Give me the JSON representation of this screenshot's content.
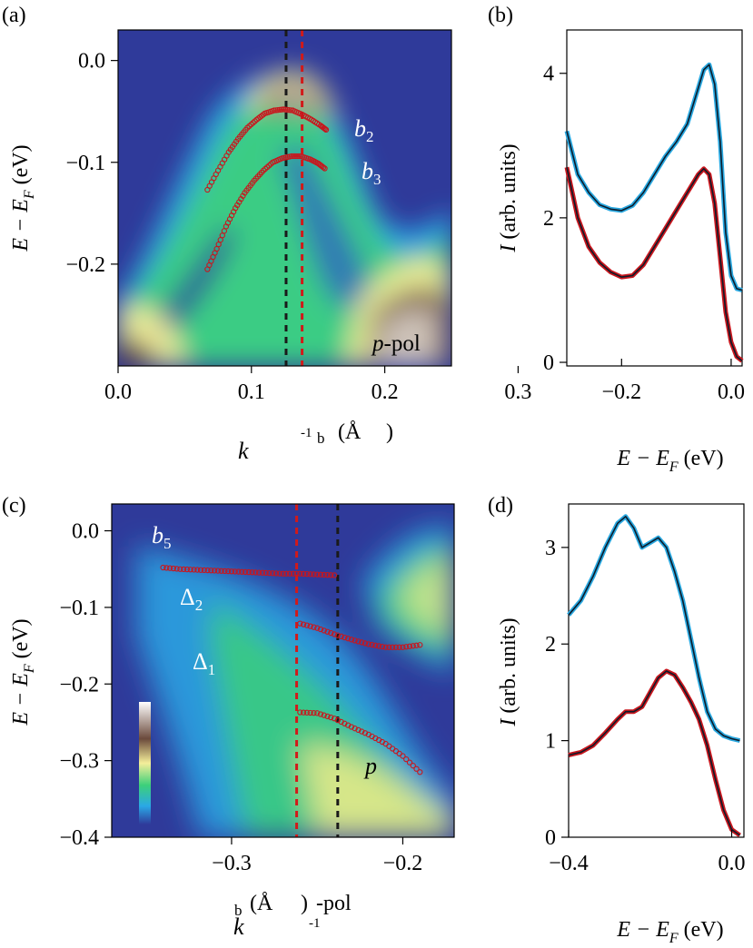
{
  "colors": {
    "blue_trace": "#29a8e0",
    "red_trace": "#c8161d",
    "fit_line": "#0d1b2a",
    "red_marker": "#c8161d",
    "red_dash": "#d11a1a",
    "black_dash": "#1a1a1a",
    "map_background": "#2f3a9a"
  },
  "panels": {
    "a": {
      "label": "(a)",
      "ylabel_main": "E − E",
      "ylabel_sub": "F",
      "ylabel_unit": " (eV)",
      "xlabel_k": "k",
      "xlabel_sub": "b",
      "xlabel_unit": "(Å",
      "xlabel_exp": "-1",
      "xlabel_close": ")",
      "band_b2": "b",
      "band_b2_sub": "2",
      "band_b3": "b",
      "band_b3_sub": "3",
      "pol_italic": "p",
      "pol_rest": "-pol",
      "xticks": [
        "0.0",
        "0.1",
        "0.2",
        "0.3"
      ],
      "yticks": [
        "0.0",
        "-0.1",
        "-0.2"
      ]
    },
    "b": {
      "label": "(b)",
      "ylabel_italic": "I",
      "ylabel_rest": " (arb. units)",
      "xlabel_main": "E − E",
      "xlabel_sub": "F",
      "xlabel_unit": " (eV)",
      "xticks": [
        "-0.2",
        "0.0"
      ],
      "yticks": [
        "0",
        "2",
        "4"
      ]
    },
    "c": {
      "label": "(c)",
      "ylabel_main": "E − E",
      "ylabel_sub": "F",
      "ylabel_unit": " (eV)",
      "xlabel_k": "k",
      "xlabel_sub": "b",
      "xlabel_unit": "(Å",
      "xlabel_exp": "-1",
      "xlabel_close": ")",
      "band_b5": "b",
      "band_b5_sub": "5",
      "band_d2": "Δ",
      "band_d2_sub": "2",
      "band_d1": "Δ",
      "band_d1_sub": "1",
      "pol_italic": "p",
      "pol_rest": "-pol",
      "xticks": [
        "-0.3",
        "-0.2"
      ],
      "yticks": [
        "0.0",
        "-0.1",
        "-0.2",
        "-0.3",
        "-0.4"
      ]
    },
    "d": {
      "label": "(d)",
      "ylabel_italic": "I",
      "ylabel_rest": " (arb. units)",
      "xlabel_main": "E − E",
      "xlabel_sub": "F",
      "xlabel_unit": " (eV)",
      "xticks": [
        "-0.4",
        "0.0"
      ],
      "yticks": [
        "0",
        "1",
        "2",
        "3"
      ]
    }
  },
  "chart_data": [
    {
      "type": "heatmap",
      "panel": "a",
      "xlim": [
        0.0,
        0.25
      ],
      "ylim": [
        -0.3,
        0.03
      ],
      "dashed_lines_k": [
        0.126,
        0.138
      ],
      "series": [
        {
          "name": "b2",
          "x": [
            0.067,
            0.075,
            0.083,
            0.09,
            0.097,
            0.104,
            0.11,
            0.117,
            0.124,
            0.131,
            0.138,
            0.145,
            0.152,
            0.156
          ],
          "y": [
            -0.127,
            -0.108,
            -0.09,
            -0.077,
            -0.066,
            -0.058,
            -0.052,
            -0.049,
            -0.048,
            -0.049,
            -0.053,
            -0.058,
            -0.064,
            -0.068
          ]
        },
        {
          "name": "b3",
          "x": [
            0.067,
            0.074,
            0.081,
            0.088,
            0.095,
            0.102,
            0.109,
            0.116,
            0.123,
            0.13,
            0.137,
            0.144,
            0.15,
            0.155
          ],
          "y": [
            -0.205,
            -0.185,
            -0.163,
            -0.145,
            -0.13,
            -0.118,
            -0.108,
            -0.1,
            -0.096,
            -0.094,
            -0.094,
            -0.097,
            -0.101,
            -0.106
          ]
        }
      ]
    },
    {
      "type": "line",
      "panel": "b",
      "xlim": [
        -0.3,
        0.02
      ],
      "ylim": [
        -0.05,
        4.6
      ],
      "series": [
        {
          "name": "blue",
          "x": [
            -0.3,
            -0.28,
            -0.26,
            -0.24,
            -0.22,
            -0.2,
            -0.18,
            -0.16,
            -0.14,
            -0.12,
            -0.1,
            -0.08,
            -0.06,
            -0.05,
            -0.04,
            -0.03,
            -0.02,
            -0.01,
            0.0,
            0.01,
            0.02
          ],
          "y": [
            3.2,
            2.6,
            2.35,
            2.18,
            2.12,
            2.1,
            2.17,
            2.35,
            2.6,
            2.85,
            3.05,
            3.3,
            3.8,
            4.05,
            4.12,
            3.85,
            3.05,
            1.8,
            1.2,
            1.02,
            1.0
          ]
        },
        {
          "name": "red",
          "x": [
            -0.3,
            -0.28,
            -0.26,
            -0.24,
            -0.22,
            -0.2,
            -0.18,
            -0.16,
            -0.14,
            -0.12,
            -0.1,
            -0.08,
            -0.06,
            -0.05,
            -0.04,
            -0.03,
            -0.02,
            -0.01,
            0.0,
            0.01,
            0.02
          ],
          "y": [
            2.7,
            2.0,
            1.6,
            1.38,
            1.25,
            1.18,
            1.2,
            1.35,
            1.6,
            1.85,
            2.1,
            2.35,
            2.6,
            2.68,
            2.6,
            2.2,
            1.45,
            0.7,
            0.28,
            0.08,
            0.02
          ]
        }
      ]
    },
    {
      "type": "heatmap",
      "panel": "c",
      "xlim": [
        -0.37,
        -0.17
      ],
      "ylim": [
        -0.4,
        0.035
      ],
      "dashed_lines_k": [
        -0.262,
        -0.238
      ],
      "series": [
        {
          "name": "b5",
          "x": [
            -0.34,
            -0.33,
            -0.32,
            -0.31,
            -0.3,
            -0.29,
            -0.28,
            -0.27,
            -0.26,
            -0.25,
            -0.24
          ],
          "y": [
            -0.048,
            -0.05,
            -0.051,
            -0.052,
            -0.053,
            -0.054,
            -0.055,
            -0.056,
            -0.056,
            -0.057,
            -0.058
          ]
        },
        {
          "name": "Δ2",
          "x": [
            -0.26,
            -0.25,
            -0.24,
            -0.23,
            -0.22,
            -0.21,
            -0.2,
            -0.19
          ],
          "y": [
            -0.121,
            -0.127,
            -0.135,
            -0.142,
            -0.148,
            -0.152,
            -0.152,
            -0.149
          ]
        },
        {
          "name": "Δ1",
          "x": [
            -0.26,
            -0.25,
            -0.24,
            -0.23,
            -0.22,
            -0.21,
            -0.2,
            -0.19
          ],
          "y": [
            -0.237,
            -0.238,
            -0.245,
            -0.256,
            -0.266,
            -0.278,
            -0.294,
            -0.315
          ]
        }
      ]
    },
    {
      "type": "line",
      "panel": "d",
      "xlim": [
        -0.4,
        0.03
      ],
      "ylim": [
        0.0,
        3.45
      ],
      "series": [
        {
          "name": "blue",
          "x": [
            -0.4,
            -0.37,
            -0.34,
            -0.31,
            -0.28,
            -0.26,
            -0.24,
            -0.22,
            -0.2,
            -0.18,
            -0.16,
            -0.14,
            -0.12,
            -0.1,
            -0.08,
            -0.06,
            -0.04,
            -0.02,
            0.0,
            0.02
          ],
          "y": [
            2.3,
            2.45,
            2.7,
            3.0,
            3.25,
            3.32,
            3.2,
            3.0,
            3.05,
            3.1,
            3.0,
            2.75,
            2.45,
            2.05,
            1.65,
            1.3,
            1.12,
            1.05,
            1.02,
            1.0
          ]
        },
        {
          "name": "red",
          "x": [
            -0.4,
            -0.37,
            -0.34,
            -0.31,
            -0.28,
            -0.26,
            -0.24,
            -0.22,
            -0.2,
            -0.18,
            -0.16,
            -0.14,
            -0.12,
            -0.1,
            -0.08,
            -0.06,
            -0.04,
            -0.02,
            0.0,
            0.02
          ],
          "y": [
            0.85,
            0.88,
            0.95,
            1.08,
            1.22,
            1.3,
            1.3,
            1.35,
            1.5,
            1.65,
            1.72,
            1.68,
            1.55,
            1.4,
            1.22,
            0.95,
            0.6,
            0.28,
            0.08,
            0.02
          ]
        }
      ]
    }
  ]
}
